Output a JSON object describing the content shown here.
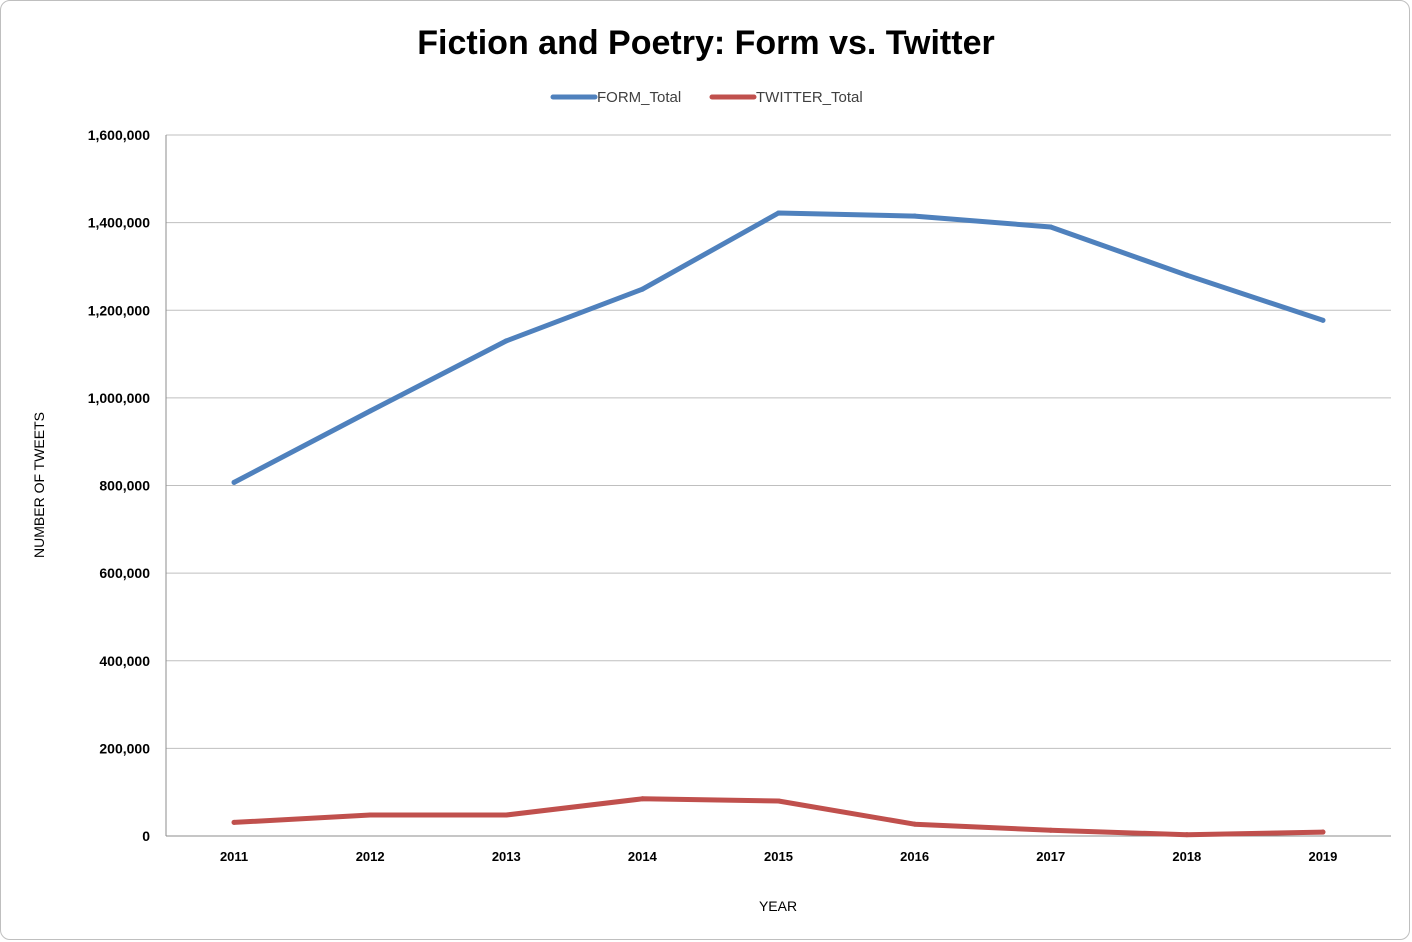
{
  "chart_data": {
    "type": "line",
    "title": "Fiction and Poetry: Form vs. Twitter",
    "xlabel": "YEAR",
    "ylabel": "NUMBER OF TWEETS",
    "categories": [
      "2011",
      "2012",
      "2013",
      "2014",
      "2015",
      "2016",
      "2017",
      "2018",
      "2019"
    ],
    "y_ticks": [
      "0",
      "200,000",
      "400,000",
      "600,000",
      "800,000",
      "1,000,000",
      "1,200,000",
      "1,400,000",
      "1,600,000"
    ],
    "ylim": [
      0,
      1600000
    ],
    "grid": true,
    "legend_position": "top",
    "series": [
      {
        "name": "FORM_Total",
        "color": "#4f81bd",
        "values": [
          807000,
          970000,
          1130000,
          1248000,
          1422000,
          1415000,
          1390000,
          1280000,
          1177000
        ]
      },
      {
        "name": "TWITTER_Total",
        "color": "#c0504d",
        "values": [
          31000,
          48000,
          48000,
          85000,
          80000,
          27000,
          13000,
          3000,
          9000
        ]
      }
    ]
  }
}
